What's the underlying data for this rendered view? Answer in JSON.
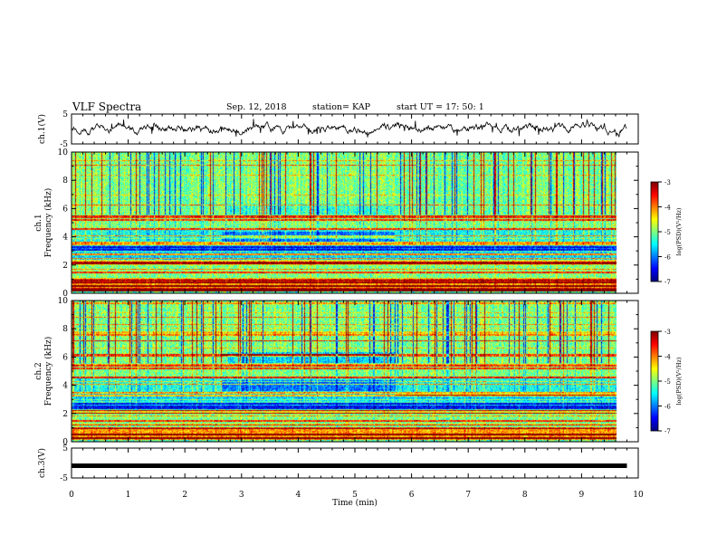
{
  "header": {
    "title": "VLF Spectra",
    "date": "Sep. 12, 2018",
    "station": "station= KAP",
    "start": "start  UT =   17: 50: 1"
  },
  "chart_data": [
    {
      "type": "line",
      "panel": "ch1-waveform",
      "ylabel": "ch.1(V)",
      "ylim": [
        -5,
        5
      ],
      "yticks": [
        "5",
        "-5"
      ],
      "xlim": [
        0,
        10
      ],
      "x_extent_min": 9.8,
      "color": "#000000",
      "description_values": "noisy waveform fluctuating roughly between -2 and 3 V"
    },
    {
      "type": "heatmap",
      "panel": "ch1-spectrogram",
      "ylabel_lines": [
        "ch.1",
        "Frequency  (kHz)"
      ],
      "ylim": [
        0,
        10
      ],
      "yticks": [
        "0",
        "2",
        "4",
        "6",
        "8",
        "10"
      ],
      "xlim": [
        0,
        10
      ],
      "colorbar": {
        "label": "log(PSD)(V²/Hz)",
        "range": [
          -7,
          -3
        ],
        "ticks": [
          "-3",
          "-4",
          "-5",
          "-6",
          "-7"
        ]
      }
    },
    {
      "type": "heatmap",
      "panel": "ch2-spectrogram",
      "ylabel_lines": [
        "ch.2",
        "Frequency  (kHz)"
      ],
      "ylim": [
        0,
        10
      ],
      "yticks": [
        "0",
        "2",
        "4",
        "6",
        "8",
        "10"
      ],
      "xlim": [
        0,
        10
      ],
      "colorbar": {
        "label": "log(PSD)(V²/Hz)",
        "range": [
          -7,
          -3
        ],
        "ticks": [
          "-3",
          "-4",
          "-5",
          "-6",
          "-7"
        ]
      }
    },
    {
      "type": "line",
      "panel": "ch3-waveform",
      "ylabel": "ch.3(V)",
      "ylim": [
        -5,
        5
      ],
      "yticks": [
        "5",
        "-5"
      ],
      "xlim": [
        0,
        10
      ],
      "values_constant": 0,
      "color": "#000000"
    }
  ],
  "xaxis": {
    "label": "Time  (min)",
    "ticks": [
      "0",
      "1",
      "2",
      "3",
      "4",
      "5",
      "6",
      "7",
      "8",
      "9",
      "10"
    ]
  }
}
